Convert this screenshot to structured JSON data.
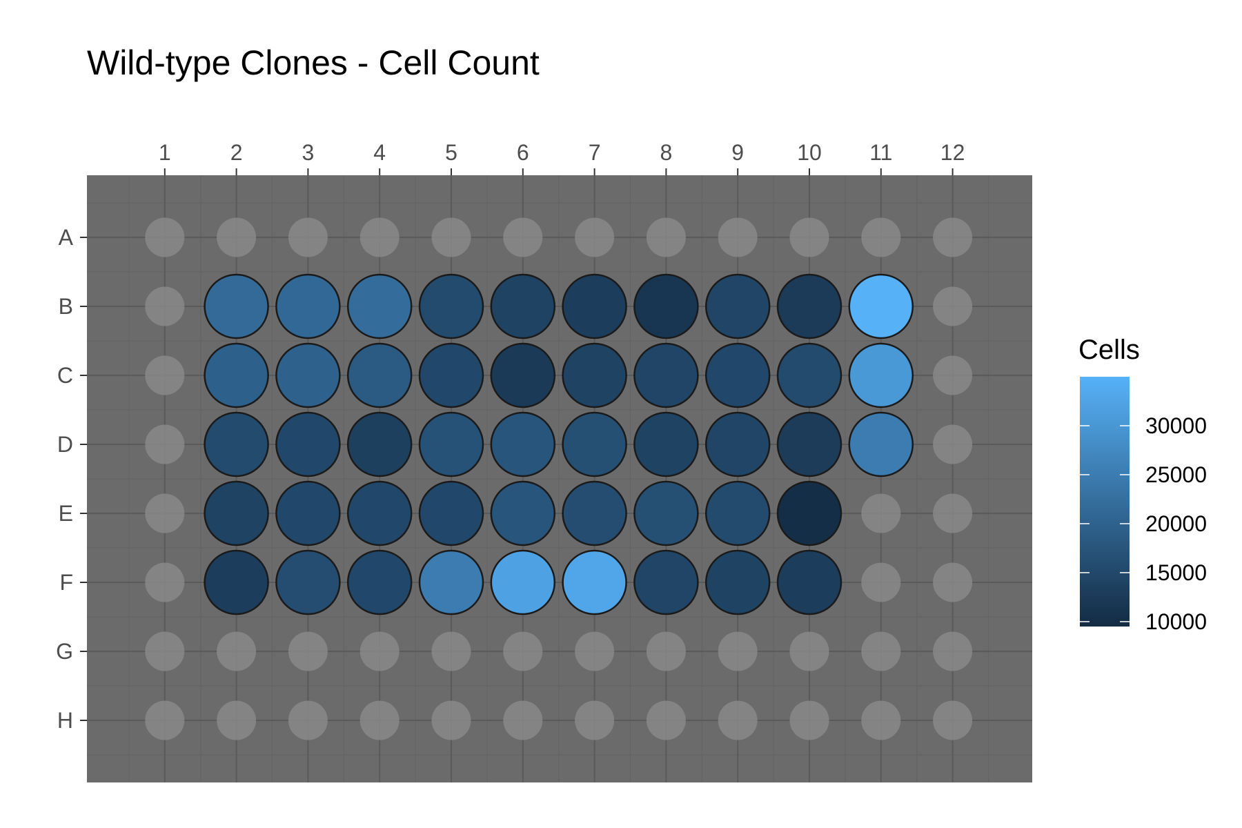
{
  "colors": {
    "panel": "#6b6b6b",
    "grid_major": "#5a5a5a",
    "grid_minor": "#646464",
    "empty_well": "#888888",
    "well_border": "#1a1a1a",
    "low": "#132b43",
    "high": "#56b1f7"
  },
  "chart_data": {
    "type": "heatmap",
    "title": "Wild-type Clones - Cell Count",
    "xlabel": "",
    "ylabel": "",
    "columns": [
      "1",
      "2",
      "3",
      "4",
      "5",
      "6",
      "7",
      "8",
      "9",
      "10",
      "11",
      "12"
    ],
    "rows": [
      "A",
      "B",
      "C",
      "D",
      "E",
      "F",
      "G",
      "H"
    ],
    "grid": true,
    "legend": {
      "title": "Cells",
      "placement": "right",
      "breaks": [
        10000,
        15000,
        20000,
        25000,
        30000
      ],
      "labels": [
        "10000",
        "15000",
        "20000",
        "25000",
        "30000"
      ],
      "range": [
        9500,
        35000
      ]
    },
    "wells": [
      {
        "row": "B",
        "col": "2",
        "value": 21500
      },
      {
        "row": "B",
        "col": "3",
        "value": 21200
      },
      {
        "row": "B",
        "col": "4",
        "value": 22000
      },
      {
        "row": "B",
        "col": "5",
        "value": 15500
      },
      {
        "row": "B",
        "col": "6",
        "value": 14000
      },
      {
        "row": "B",
        "col": "7",
        "value": 13000
      },
      {
        "row": "B",
        "col": "8",
        "value": 11500
      },
      {
        "row": "B",
        "col": "9",
        "value": 14500
      },
      {
        "row": "B",
        "col": "10",
        "value": 12500
      },
      {
        "row": "B",
        "col": "11",
        "value": 35000
      },
      {
        "row": "C",
        "col": "2",
        "value": 19500
      },
      {
        "row": "C",
        "col": "3",
        "value": 19800
      },
      {
        "row": "C",
        "col": "4",
        "value": 18500
      },
      {
        "row": "C",
        "col": "5",
        "value": 15000
      },
      {
        "row": "C",
        "col": "6",
        "value": 12300
      },
      {
        "row": "C",
        "col": "7",
        "value": 14000
      },
      {
        "row": "C",
        "col": "8",
        "value": 14500
      },
      {
        "row": "C",
        "col": "9",
        "value": 15000
      },
      {
        "row": "C",
        "col": "10",
        "value": 15500
      },
      {
        "row": "C",
        "col": "11",
        "value": 30500
      },
      {
        "row": "D",
        "col": "2",
        "value": 15500
      },
      {
        "row": "D",
        "col": "3",
        "value": 15000
      },
      {
        "row": "D",
        "col": "4",
        "value": 13500
      },
      {
        "row": "D",
        "col": "5",
        "value": 17000
      },
      {
        "row": "D",
        "col": "6",
        "value": 17500
      },
      {
        "row": "D",
        "col": "7",
        "value": 16500
      },
      {
        "row": "D",
        "col": "8",
        "value": 14000
      },
      {
        "row": "D",
        "col": "9",
        "value": 14500
      },
      {
        "row": "D",
        "col": "10",
        "value": 12800
      },
      {
        "row": "D",
        "col": "11",
        "value": 25000
      },
      {
        "row": "E",
        "col": "2",
        "value": 14000
      },
      {
        "row": "E",
        "col": "3",
        "value": 15000
      },
      {
        "row": "E",
        "col": "4",
        "value": 15000
      },
      {
        "row": "E",
        "col": "5",
        "value": 15000
      },
      {
        "row": "E",
        "col": "6",
        "value": 17500
      },
      {
        "row": "E",
        "col": "7",
        "value": 16000
      },
      {
        "row": "E",
        "col": "8",
        "value": 16500
      },
      {
        "row": "E",
        "col": "9",
        "value": 15500
      },
      {
        "row": "E",
        "col": "10",
        "value": 10000
      },
      {
        "row": "F",
        "col": "2",
        "value": 13000
      },
      {
        "row": "F",
        "col": "3",
        "value": 16000
      },
      {
        "row": "F",
        "col": "4",
        "value": 15000
      },
      {
        "row": "F",
        "col": "5",
        "value": 25000
      },
      {
        "row": "F",
        "col": "6",
        "value": 32000
      },
      {
        "row": "F",
        "col": "7",
        "value": 33000
      },
      {
        "row": "F",
        "col": "8",
        "value": 14500
      },
      {
        "row": "F",
        "col": "9",
        "value": 14000
      },
      {
        "row": "F",
        "col": "10",
        "value": 13000
      }
    ]
  }
}
